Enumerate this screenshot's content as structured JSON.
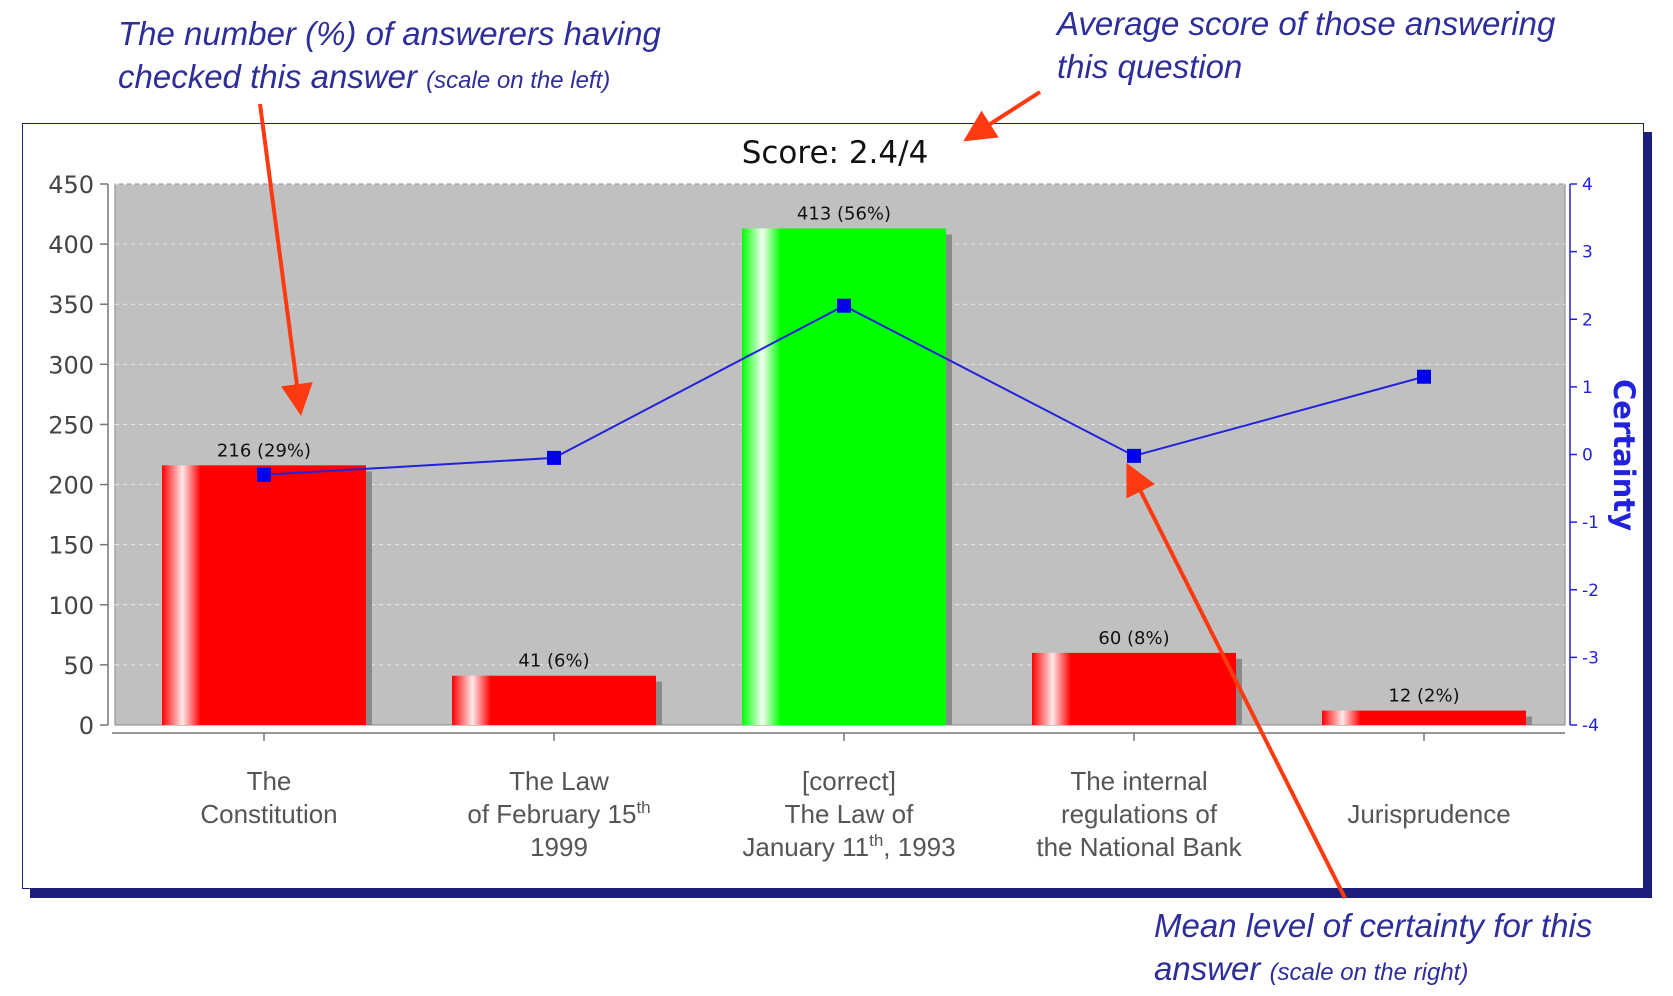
{
  "annotations": {
    "bars_note": {
      "main_1": "The number (%) of answerers having",
      "main_2": "checked this answer",
      "small": "(scale on the left)"
    },
    "score_note": {
      "line_1": "Average score of those answering",
      "line_2": "this question"
    },
    "certainty_note": {
      "line_1": "Mean level of certainty for this",
      "main_2": "answer",
      "small": "(scale on the right)"
    }
  },
  "colors": {
    "correct_bar": "#00ff00",
    "wrong_bar": "#ff0000",
    "certainty_line": "#2222dd",
    "plot_bg": "#c0c0c0",
    "annotation_text": "#2e2e9a",
    "arrow": "#ff3a10"
  },
  "chart_data": {
    "type": "bar",
    "title": "Score: 2.4/4",
    "categories": [
      {
        "lines": [
          "The",
          "Constitution"
        ]
      },
      {
        "lines": [
          "The Law",
          "of February 15|th|",
          "1999"
        ]
      },
      {
        "lines": [
          "[correct]",
          "The Law of",
          "January 11|th|, 1993"
        ]
      },
      {
        "lines": [
          "The internal",
          "regulations of",
          "the National Bank"
        ]
      },
      {
        "lines": [
          "Jurisprudence"
        ]
      }
    ],
    "series": [
      {
        "values": [
          216,
          41,
          413,
          60,
          12
        ],
        "labels": [
          "216 (29%)",
          "41 (6%)",
          "413 (56%)",
          "60 (8%)",
          "12 (2%)"
        ],
        "correct": [
          false,
          false,
          true,
          false,
          false
        ]
      },
      {
        "name": "Certainty",
        "axis": "right",
        "type": "line",
        "values": [
          -0.3,
          -0.05,
          2.2,
          -0.02,
          1.15
        ]
      }
    ],
    "ylim_left": [
      0,
      450
    ],
    "ylim_right": [
      -4,
      4
    ],
    "yticks_left": [
      "0",
      "50",
      "100",
      "150",
      "200",
      "250",
      "300",
      "350",
      "400",
      "450"
    ],
    "yticks_right": [
      "-4",
      "-3",
      "-2",
      "-1",
      "0",
      "1",
      "2",
      "3",
      "4"
    ],
    "ylabel_right": "Certainty",
    "grid": true
  }
}
